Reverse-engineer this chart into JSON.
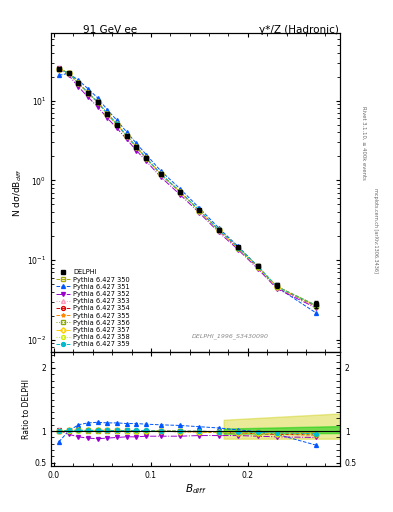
{
  "title_left": "91 GeV ee",
  "title_right": "γ*/Z (Hadronic)",
  "ylabel_main": "N dσ/dB_diff",
  "ylabel_ratio": "Ratio to DELPHI",
  "xlabel": "B_diff",
  "annotation": "DELPHI_1996_S3430090",
  "rivet_label": "Rivet 3.1.10, ≥ 400k events",
  "mcplots_label": "mcplots.cern.ch [arXiv:1306.3436]",
  "x_data": [
    0.005,
    0.015,
    0.025,
    0.035,
    0.045,
    0.055,
    0.065,
    0.075,
    0.085,
    0.095,
    0.11,
    0.13,
    0.15,
    0.17,
    0.19,
    0.21,
    0.23,
    0.27
  ],
  "delphi_y": [
    25.0,
    22.0,
    16.5,
    12.5,
    9.5,
    6.8,
    5.0,
    3.6,
    2.6,
    1.9,
    1.2,
    0.72,
    0.42,
    0.24,
    0.145,
    0.085,
    0.048,
    0.028
  ],
  "delphi_yerr": [
    0.8,
    0.7,
    0.5,
    0.4,
    0.3,
    0.2,
    0.15,
    0.11,
    0.08,
    0.06,
    0.04,
    0.025,
    0.015,
    0.009,
    0.006,
    0.004,
    0.003,
    0.003
  ],
  "mc_series": [
    {
      "label": "Pythia 6.427 350",
      "color": "#aaaa00",
      "linestyle": "--",
      "marker": "s",
      "fillstyle": "none"
    },
    {
      "label": "Pythia 6.427 351",
      "color": "#0055ff",
      "linestyle": "--",
      "marker": "^",
      "fillstyle": "full"
    },
    {
      "label": "Pythia 6.427 352",
      "color": "#9900cc",
      "linestyle": "-.",
      "marker": "v",
      "fillstyle": "full"
    },
    {
      "label": "Pythia 6.427 353",
      "color": "#ff99bb",
      "linestyle": ":",
      "marker": "^",
      "fillstyle": "none"
    },
    {
      "label": "Pythia 6.427 354",
      "color": "#dd0000",
      "linestyle": "--",
      "marker": "o",
      "fillstyle": "none"
    },
    {
      "label": "Pythia 6.427 355",
      "color": "#ff8800",
      "linestyle": "--",
      "marker": "*",
      "fillstyle": "full"
    },
    {
      "label": "Pythia 6.427 356",
      "color": "#88aa00",
      "linestyle": ":",
      "marker": "s",
      "fillstyle": "none"
    },
    {
      "label": "Pythia 6.427 357",
      "color": "#ffcc00",
      "linestyle": "-.",
      "marker": "D",
      "fillstyle": "none"
    },
    {
      "label": "Pythia 6.427 358",
      "color": "#ccee00",
      "linestyle": ":",
      "marker": "o",
      "fillstyle": "none"
    },
    {
      "label": "Pythia 6.427 359",
      "color": "#00bbcc",
      "linestyle": "--",
      "marker": "o",
      "fillstyle": "full"
    }
  ],
  "ylim_main": [
    0.007,
    70
  ],
  "ylim_ratio": [
    0.45,
    2.25
  ],
  "ratio_yticks": [
    0.5,
    1.0,
    2.0
  ],
  "band_color_inner": "#00cc00",
  "band_color_outer": "#cccc00",
  "band_alpha_inner": 0.5,
  "band_alpha_outer": 0.4,
  "background_color": "#ffffff",
  "xlim": [
    -0.003,
    0.295
  ]
}
